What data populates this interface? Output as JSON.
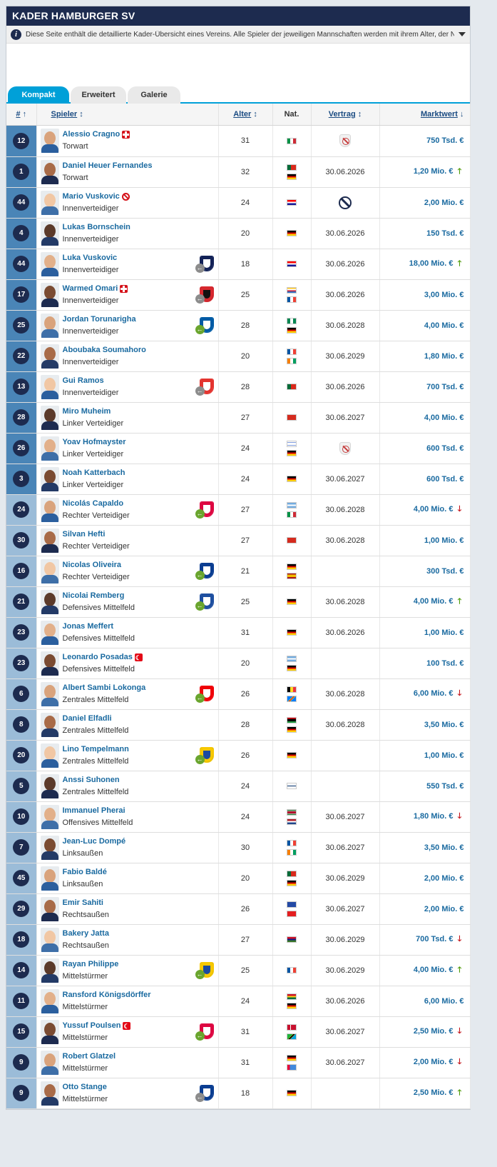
{
  "page": {
    "title": "KADER HAMBURGER SV",
    "info_text": "Diese Seite enthält die detaillierte Kader-Übersicht eines Vereins. Alle Spieler der jeweiligen Mannschaften werden mit ihrem Alter, der Natio..."
  },
  "tabs": [
    "Kompakt",
    "Erweitert",
    "Galerie"
  ],
  "columns": {
    "number": "#",
    "player": "Spieler",
    "age": "Alter",
    "nat": "Nat.",
    "contract": "Vertrag",
    "value": "Marktwert"
  },
  "colors": {
    "accent": "#00a0d8",
    "navy": "#1d2b4f",
    "link": "#1a6aa0",
    "up": "#4e9a06",
    "down": "#c4161c"
  },
  "players": [
    {
      "num": "12",
      "name": "Alessio Cragno",
      "badge": "injury",
      "pos": "Torwart",
      "club": null,
      "age": "31",
      "flags": [
        "it"
      ],
      "contract": "",
      "contract_icon": "no-contract",
      "value": "750 Tsd. €",
      "trend": "none",
      "num_shade": "dark"
    },
    {
      "num": "1",
      "name": "Daniel Heuer Fernandes",
      "badge": null,
      "pos": "Torwart",
      "club": null,
      "age": "32",
      "flags": [
        "pt",
        "de"
      ],
      "contract": "30.06.2026",
      "contract_icon": null,
      "value": "1,20 Mio. €",
      "trend": "up",
      "num_shade": "dark"
    },
    {
      "num": "44",
      "name": "Mario Vuskovic",
      "badge": "ban",
      "pos": "Innenverteidiger",
      "club": null,
      "age": "24",
      "flags": [
        "hr"
      ],
      "contract": "",
      "contract_icon": "banned",
      "value": "2,00 Mio. €",
      "trend": "none",
      "num_shade": "dark"
    },
    {
      "num": "4",
      "name": "Lukas Bornschein",
      "badge": null,
      "pos": "Innenverteidiger",
      "club": null,
      "age": "20",
      "flags": [
        "de"
      ],
      "contract": "30.06.2026",
      "contract_icon": null,
      "value": "150 Tsd. €",
      "trend": "none",
      "num_shade": "dark"
    },
    {
      "num": "44",
      "name": "Luka Vuskovic",
      "badge": null,
      "pos": "Innenverteidiger",
      "club": {
        "dir": "out",
        "color": "#132257",
        "bg": "#ffffff"
      },
      "age": "18",
      "flags": [
        "hr"
      ],
      "contract": "30.06.2026",
      "contract_icon": null,
      "value": "18,00 Mio. €",
      "trend": "up",
      "num_shade": "dark"
    },
    {
      "num": "17",
      "name": "Warmed Omari",
      "badge": "injury",
      "pos": "Innenverteidiger",
      "club": {
        "dir": "out",
        "color": "#d7282f",
        "bg": "#111111"
      },
      "age": "25",
      "flags": [
        "km",
        "fr"
      ],
      "contract": "30.06.2026",
      "contract_icon": null,
      "value": "3,00 Mio. €",
      "trend": "none",
      "num_shade": "dark"
    },
    {
      "num": "25",
      "name": "Jordan Torunarigha",
      "badge": null,
      "pos": "Innenverteidiger",
      "club": {
        "dir": "in",
        "color": "#005ba5",
        "bg": "#ffffff"
      },
      "age": "28",
      "flags": [
        "ng",
        "de"
      ],
      "contract": "30.06.2028",
      "contract_icon": null,
      "value": "4,00 Mio. €",
      "trend": "none",
      "num_shade": "dark"
    },
    {
      "num": "22",
      "name": "Aboubaka Soumahoro",
      "badge": null,
      "pos": "Innenverteidiger",
      "club": null,
      "age": "20",
      "flags": [
        "fr",
        "ci"
      ],
      "contract": "30.06.2029",
      "contract_icon": null,
      "value": "1,80 Mio. €",
      "trend": "none",
      "num_shade": "dark"
    },
    {
      "num": "13",
      "name": "Gui Ramos",
      "badge": null,
      "pos": "Innenverteidiger",
      "club": {
        "dir": "out",
        "color": "#e3342f",
        "bg": "#ffffff"
      },
      "age": "28",
      "flags": [
        "pt"
      ],
      "contract": "30.06.2026",
      "contract_icon": null,
      "value": "700 Tsd. €",
      "trend": "none",
      "num_shade": "dark"
    },
    {
      "num": "28",
      "name": "Miro Muheim",
      "badge": null,
      "pos": "Linker Verteidiger",
      "club": null,
      "age": "27",
      "flags": [
        "ch"
      ],
      "contract": "30.06.2027",
      "contract_icon": null,
      "value": "4,00 Mio. €",
      "trend": "none",
      "num_shade": "dark"
    },
    {
      "num": "26",
      "name": "Yoav Hofmayster",
      "badge": null,
      "pos": "Linker Verteidiger",
      "club": null,
      "age": "24",
      "flags": [
        "il",
        "de"
      ],
      "contract": "",
      "contract_icon": "no-contract",
      "value": "600 Tsd. €",
      "trend": "none",
      "num_shade": "dark"
    },
    {
      "num": "3",
      "name": "Noah Katterbach",
      "badge": null,
      "pos": "Linker Verteidiger",
      "club": null,
      "age": "24",
      "flags": [
        "de"
      ],
      "contract": "30.06.2027",
      "contract_icon": null,
      "value": "600 Tsd. €",
      "trend": "none",
      "num_shade": "dark"
    },
    {
      "num": "24",
      "name": "Nicolás Capaldo",
      "badge": null,
      "pos": "Rechter Verteidiger",
      "club": {
        "dir": "in",
        "color": "#dd0741",
        "bg": "#ffffff"
      },
      "age": "27",
      "flags": [
        "ar",
        "it"
      ],
      "contract": "30.06.2028",
      "contract_icon": null,
      "value": "4,00 Mio. €",
      "trend": "down",
      "num_shade": "light"
    },
    {
      "num": "30",
      "name": "Silvan Hefti",
      "badge": null,
      "pos": "Rechter Verteidiger",
      "club": null,
      "age": "27",
      "flags": [
        "ch"
      ],
      "contract": "30.06.2028",
      "contract_icon": null,
      "value": "1,00 Mio. €",
      "trend": "none",
      "num_shade": "light"
    },
    {
      "num": "16",
      "name": "Nicolas Oliveira",
      "badge": null,
      "pos": "Rechter Verteidiger",
      "club": {
        "dir": "in",
        "color": "#0a3d91",
        "bg": "#ffffff"
      },
      "age": "21",
      "flags": [
        "de",
        "es"
      ],
      "contract": "",
      "contract_icon": null,
      "value": "300 Tsd. €",
      "trend": "none",
      "num_shade": "light"
    },
    {
      "num": "21",
      "name": "Nicolai Remberg",
      "badge": null,
      "pos": "Defensives Mittelfeld",
      "club": {
        "dir": "in",
        "color": "#1e4fa0",
        "bg": "#ffffff"
      },
      "age": "25",
      "flags": [
        "de"
      ],
      "contract": "30.06.2028",
      "contract_icon": null,
      "value": "4,00 Mio. €",
      "trend": "up",
      "num_shade": "light"
    },
    {
      "num": "23",
      "name": "Jonas Meffert",
      "badge": null,
      "pos": "Defensives Mittelfeld",
      "club": null,
      "age": "31",
      "flags": [
        "de"
      ],
      "contract": "30.06.2026",
      "contract_icon": null,
      "value": "1,00 Mio. €",
      "trend": "none",
      "num_shade": "light"
    },
    {
      "num": "23",
      "name": "Leonardo Posadas",
      "badge": "flag-tr",
      "pos": "Defensives Mittelfeld",
      "club": null,
      "age": "20",
      "flags": [
        "ar",
        "de"
      ],
      "contract": "",
      "contract_icon": null,
      "value": "100 Tsd. €",
      "trend": "none",
      "num_shade": "light"
    },
    {
      "num": "6",
      "name": "Albert Sambi Lokonga",
      "badge": null,
      "pos": "Zentrales Mittelfeld",
      "club": {
        "dir": "in",
        "color": "#ef0107",
        "bg": "#ffffff"
      },
      "age": "26",
      "flags": [
        "be",
        "cd"
      ],
      "contract": "30.06.2028",
      "contract_icon": null,
      "value": "6,00 Mio. €",
      "trend": "down",
      "num_shade": "light"
    },
    {
      "num": "8",
      "name": "Daniel Elfadli",
      "badge": null,
      "pos": "Zentrales Mittelfeld",
      "club": null,
      "age": "28",
      "flags": [
        "ly",
        "de"
      ],
      "contract": "30.06.2028",
      "contract_icon": null,
      "value": "3,50 Mio. €",
      "trend": "none",
      "num_shade": "light"
    },
    {
      "num": "20",
      "name": "Lino Tempelmann",
      "badge": null,
      "pos": "Zentrales Mittelfeld",
      "club": {
        "dir": "in",
        "color": "#f7c800",
        "bg": "#1a4aa0"
      },
      "age": "26",
      "flags": [
        "de"
      ],
      "contract": "",
      "contract_icon": null,
      "value": "1,00 Mio. €",
      "trend": "none",
      "num_shade": "light"
    },
    {
      "num": "5",
      "name": "Anssi Suhonen",
      "badge": null,
      "pos": "Zentrales Mittelfeld",
      "club": null,
      "age": "24",
      "flags": [
        "fi"
      ],
      "contract": "",
      "contract_icon": null,
      "value": "550 Tsd. €",
      "trend": "none",
      "num_shade": "light"
    },
    {
      "num": "10",
      "name": "Immanuel Pherai",
      "badge": null,
      "pos": "Offensives Mittelfeld",
      "club": null,
      "age": "24",
      "flags": [
        "sr",
        "nl"
      ],
      "contract": "30.06.2027",
      "contract_icon": null,
      "value": "1,80 Mio. €",
      "trend": "down",
      "num_shade": "light"
    },
    {
      "num": "7",
      "name": "Jean-Luc Dompé",
      "badge": null,
      "pos": "Linksaußen",
      "club": null,
      "age": "30",
      "flags": [
        "fr",
        "ci"
      ],
      "contract": "30.06.2027",
      "contract_icon": null,
      "value": "3,50 Mio. €",
      "trend": "none",
      "num_shade": "light"
    },
    {
      "num": "45",
      "name": "Fabio Baldé",
      "badge": null,
      "pos": "Linksaußen",
      "club": null,
      "age": "20",
      "flags": [
        "pt",
        "de"
      ],
      "contract": "30.06.2029",
      "contract_icon": null,
      "value": "2,00 Mio. €",
      "trend": "none",
      "num_shade": "light"
    },
    {
      "num": "29",
      "name": "Emir Sahiti",
      "badge": null,
      "pos": "Rechtsaußen",
      "club": null,
      "age": "26",
      "flags": [
        "xk",
        "al"
      ],
      "contract": "30.06.2027",
      "contract_icon": null,
      "value": "2,00 Mio. €",
      "trend": "none",
      "num_shade": "light"
    },
    {
      "num": "18",
      "name": "Bakery Jatta",
      "badge": null,
      "pos": "Rechtsaußen",
      "club": null,
      "age": "27",
      "flags": [
        "gm"
      ],
      "contract": "30.06.2029",
      "contract_icon": null,
      "value": "700 Tsd. €",
      "trend": "down",
      "num_shade": "light"
    },
    {
      "num": "14",
      "name": "Rayan Philippe",
      "badge": null,
      "pos": "Mittelstürmer",
      "club": {
        "dir": "in",
        "color": "#f7c800",
        "bg": "#1a4aa0"
      },
      "age": "25",
      "flags": [
        "fr"
      ],
      "contract": "30.06.2029",
      "contract_icon": null,
      "value": "4,00 Mio. €",
      "trend": "up",
      "num_shade": "light"
    },
    {
      "num": "11",
      "name": "Ransford Königsdörffer",
      "badge": null,
      "pos": "Mittelstürmer",
      "club": null,
      "age": "24",
      "flags": [
        "gh",
        "de"
      ],
      "contract": "30.06.2026",
      "contract_icon": null,
      "value": "6,00 Mio. €",
      "trend": "none",
      "num_shade": "light"
    },
    {
      "num": "15",
      "name": "Yussuf Poulsen",
      "badge": "flag-tr",
      "pos": "Mittelstürmer",
      "club": {
        "dir": "in",
        "color": "#dd0741",
        "bg": "#ffffff"
      },
      "age": "31",
      "flags": [
        "dk",
        "tz"
      ],
      "contract": "30.06.2027",
      "contract_icon": null,
      "value": "2,50 Mio. €",
      "trend": "down",
      "num_shade": "light"
    },
    {
      "num": "9",
      "name": "Robert Glatzel",
      "badge": null,
      "pos": "Mittelstürmer",
      "club": null,
      "age": "31",
      "flags": [
        "de",
        "er"
      ],
      "contract": "30.06.2027",
      "contract_icon": null,
      "value": "2,00 Mio. €",
      "trend": "down",
      "num_shade": "light"
    },
    {
      "num": "9",
      "name": "Otto Stange",
      "badge": null,
      "pos": "Mittelstürmer",
      "club": {
        "dir": "out",
        "color": "#0a3d91",
        "bg": "#ffffff"
      },
      "age": "18",
      "flags": [
        "de"
      ],
      "contract": "",
      "contract_icon": null,
      "value": "2,50 Mio. €",
      "trend": "up",
      "num_shade": "light"
    }
  ]
}
